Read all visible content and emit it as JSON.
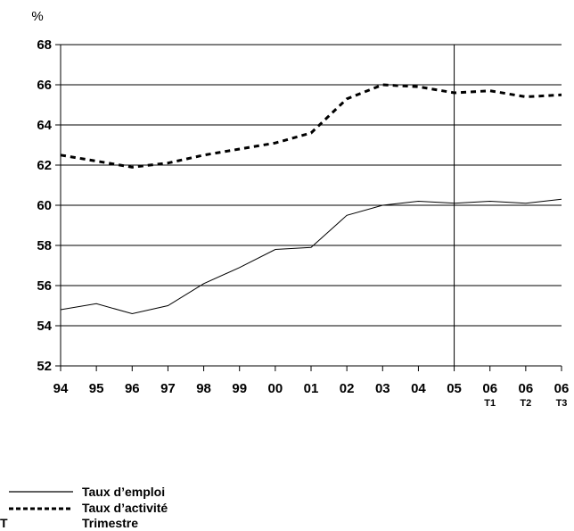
{
  "chart_data": {
    "type": "line",
    "ylabel": "%",
    "ylim": [
      52,
      68
    ],
    "yticks": [
      "52",
      "54",
      "56",
      "58",
      "60",
      "62",
      "64",
      "66",
      "68"
    ],
    "categories": [
      "94",
      "95",
      "96",
      "97",
      "98",
      "99",
      "00",
      "01",
      "02",
      "03",
      "04",
      "05",
      "06",
      "06",
      "06"
    ],
    "category_sublabels": [
      "",
      "",
      "",
      "",
      "",
      "",
      "",
      "",
      "",
      "",
      "",
      "",
      "T1",
      "T2",
      "T3"
    ],
    "vertical_marker_after": "05",
    "grid": "horizontal",
    "series": [
      {
        "name": "Taux d’emploi",
        "style": "solid",
        "values": [
          54.8,
          55.1,
          54.6,
          55.0,
          56.1,
          56.9,
          57.8,
          57.9,
          59.5,
          60.0,
          60.2,
          60.1,
          60.2,
          60.1,
          60.3
        ]
      },
      {
        "name": "Taux d’activité",
        "style": "dashed",
        "values": [
          62.5,
          62.2,
          61.9,
          62.1,
          62.5,
          62.8,
          63.1,
          63.6,
          65.3,
          66.0,
          65.9,
          65.6,
          65.7,
          65.4,
          65.5
        ]
      }
    ]
  },
  "legend": {
    "items": [
      {
        "key": "solid",
        "label": "Taux d’emploi"
      },
      {
        "key": "dashed",
        "label": "Taux d’activité"
      },
      {
        "key": "T",
        "label": "Trimestre"
      }
    ]
  },
  "colors": {
    "line": "#000000",
    "grid": "#000000"
  }
}
